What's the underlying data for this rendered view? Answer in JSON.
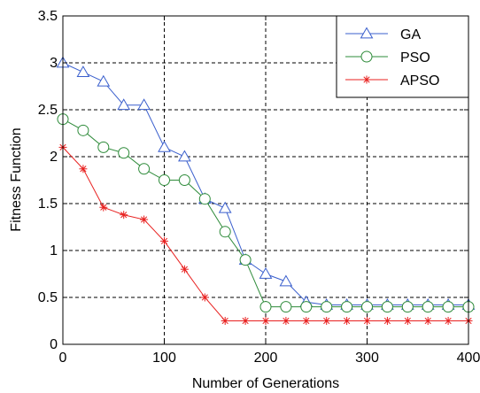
{
  "chart_data": {
    "type": "line",
    "title": "",
    "xlabel": "Number of Generations",
    "ylabel": "Fitness Function",
    "xlim": [
      0,
      400
    ],
    "ylim": [
      0,
      3.5
    ],
    "x_ticks": [
      0,
      100,
      200,
      300,
      400
    ],
    "y_ticks": [
      0,
      0.5,
      1,
      1.5,
      2,
      2.5,
      3,
      3.5
    ],
    "x_tick_labels": [
      "0",
      "100",
      "200",
      "300",
      "400"
    ],
    "y_tick_labels": [
      "0",
      "0.5",
      "1",
      "1.5",
      "2",
      "2.5",
      "3",
      "3.5"
    ],
    "grid": true,
    "grid_style": "dashed",
    "legend_position": "top-right",
    "series": [
      {
        "name": "GA",
        "color": "#3a5fcd",
        "marker": "triangle",
        "x": [
          0,
          20,
          40,
          60,
          80,
          100,
          120,
          140,
          160,
          180,
          200,
          220,
          240,
          260,
          280,
          300,
          320,
          340,
          360,
          380,
          400
        ],
        "y": [
          3.0,
          2.9,
          2.8,
          2.55,
          2.55,
          2.1,
          2.0,
          1.55,
          1.45,
          0.9,
          0.75,
          0.67,
          0.45,
          0.42,
          0.42,
          0.42,
          0.42,
          0.42,
          0.42,
          0.42,
          0.42
        ]
      },
      {
        "name": "PSO",
        "color": "#2e8b3a",
        "marker": "circle",
        "x": [
          0,
          20,
          40,
          60,
          80,
          100,
          120,
          140,
          160,
          180,
          200,
          220,
          240,
          260,
          280,
          300,
          320,
          340,
          360,
          380,
          400
        ],
        "y": [
          2.4,
          2.28,
          2.1,
          2.04,
          1.87,
          1.75,
          1.75,
          1.55,
          1.2,
          0.9,
          0.4,
          0.4,
          0.4,
          0.4,
          0.4,
          0.4,
          0.4,
          0.4,
          0.4,
          0.4,
          0.4
        ]
      },
      {
        "name": "APSO",
        "color": "#e8201f",
        "marker": "star",
        "x": [
          0,
          20,
          40,
          60,
          80,
          100,
          120,
          140,
          160,
          180,
          200,
          220,
          240,
          260,
          280,
          300,
          320,
          340,
          360,
          380,
          400
        ],
        "y": [
          2.1,
          1.87,
          1.46,
          1.38,
          1.33,
          1.1,
          0.8,
          0.5,
          0.25,
          0.25,
          0.25,
          0.25,
          0.25,
          0.25,
          0.25,
          0.25,
          0.25,
          0.25,
          0.25,
          0.25,
          0.25
        ]
      }
    ]
  }
}
